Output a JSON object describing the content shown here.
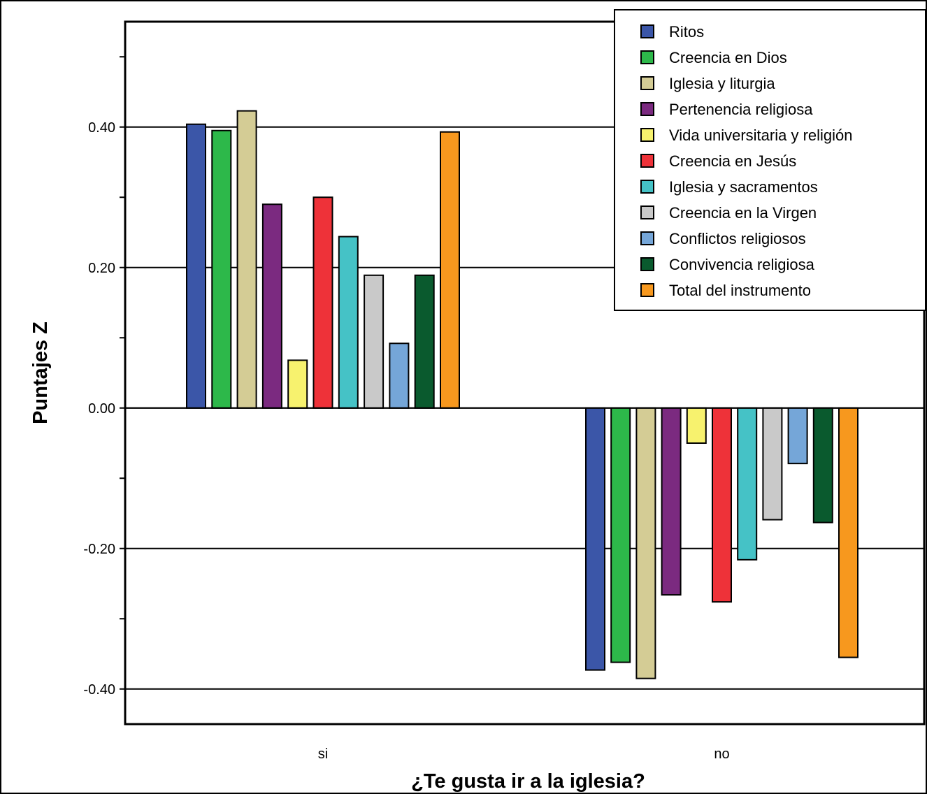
{
  "chart_data": {
    "type": "bar",
    "title": "",
    "xlabel": "¿Te gusta ir a la iglesia?",
    "ylabel": "Puntajes Z",
    "ylim": [
      -0.45,
      0.55
    ],
    "yticks": [
      -0.4,
      -0.2,
      0.0,
      0.2,
      0.4
    ],
    "ytick_labels": [
      "-0.40",
      "-0.20",
      "0.00",
      "0.20",
      "0.40"
    ],
    "minor_yticks": [
      -0.3,
      -0.1,
      0.1,
      0.3,
      0.5
    ],
    "grid": "horizontal major",
    "legend_position": "top-right",
    "categories": [
      "si",
      "no"
    ],
    "series": [
      {
        "name": "Ritos",
        "color": "#3b56a8",
        "values": [
          0.404,
          -0.373
        ]
      },
      {
        "name": "Creencia en Dios",
        "color": "#2db84a",
        "values": [
          0.395,
          -0.362
        ]
      },
      {
        "name": "Iglesia y liturgia",
        "color": "#d4cc95",
        "values": [
          0.423,
          -0.385
        ]
      },
      {
        "name": "Pertenencia religiosa",
        "color": "#7b2a80",
        "values": [
          0.29,
          -0.266
        ]
      },
      {
        "name": "Vida universitaria y religión",
        "color": "#f7f26e",
        "values": [
          0.068,
          -0.05
        ]
      },
      {
        "name": "Creencia en Jesús",
        "color": "#ee3239",
        "values": [
          0.3,
          -0.276
        ]
      },
      {
        "name": "Iglesia y sacramentos",
        "color": "#45c2c6",
        "values": [
          0.244,
          -0.216
        ]
      },
      {
        "name": "Creencia en la Virgen",
        "color": "#c9c9c9",
        "values": [
          0.189,
          -0.159
        ]
      },
      {
        "name": "Conflictos religiosos",
        "color": "#75a6d8",
        "values": [
          0.092,
          -0.079
        ]
      },
      {
        "name": "Convivencia religiosa",
        "color": "#0a5a2e",
        "values": [
          0.189,
          -0.163
        ]
      },
      {
        "name": "Total del instrumento",
        "color": "#f7981e",
        "values": [
          0.393,
          -0.355
        ]
      }
    ]
  }
}
